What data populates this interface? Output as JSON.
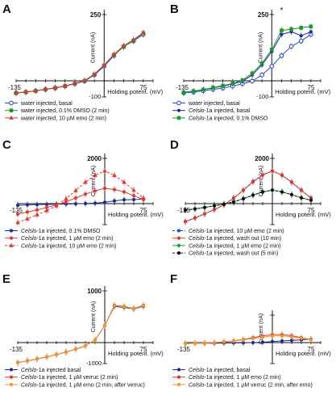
{
  "figure": {
    "panels": [
      {
        "letter": "A",
        "ymax_label": "250",
        "ymin_label": "-100",
        "xmin_label": "-135",
        "xmax_label": "75",
        "ylabel": "Current (nA)",
        "xlabel": "Holding potent. (mV)",
        "legend": [
          {
            "prefix": "",
            "italic": "",
            "text": "water injected, basal",
            "color": "#2a4bd8",
            "marker": "open-circle",
            "dash": "none"
          },
          {
            "prefix": "",
            "italic": "",
            "text": "water injected, 0.1% DMSO (2 min)",
            "color": "#1a9a2a",
            "marker": "square",
            "dash": "none"
          },
          {
            "prefix": "",
            "italic": "",
            "text": "water injected, 10 µM emo (2 min)",
            "color": "#e0382a",
            "marker": "triangle",
            "dash": "none"
          }
        ]
      },
      {
        "letter": "B",
        "ymax_label": "250",
        "ymin_label": "-100",
        "xmin_label": "-135",
        "xmax_label": "75",
        "ylabel": "Current (nA)",
        "xlabel": "Holding potent. (mV)",
        "annotation": "*",
        "legend": [
          {
            "prefix": "",
            "italic": "",
            "text": "water injected, basal",
            "color": "#2a4bd8",
            "marker": "open-circle",
            "dash": "none"
          },
          {
            "prefix": "",
            "italic": "Celslo",
            "text": "-1a injected, basal",
            "color": "#1a2a9a",
            "marker": "circle",
            "dash": "none"
          },
          {
            "prefix": "",
            "italic": "Celslo",
            "text": "-1a injected, 0.1% DMSO",
            "color": "#1a9a2a",
            "marker": "square",
            "dash": "none"
          }
        ]
      },
      {
        "letter": "C",
        "ymax_label": "2000",
        "ymin_label": "",
        "xmin_label": "-135",
        "xmax_label": "75",
        "ylabel": "Current (nA)",
        "xlabel": "Holding potent. (mV)",
        "legend": [
          {
            "prefix": "",
            "italic": "Celslo",
            "text": "-1a injected, 0.1% DMSO",
            "color": "#1a2a9a",
            "marker": "circle",
            "dash": "none"
          },
          {
            "prefix": "",
            "italic": "Celslo",
            "text": "-1a injected, 1 µM emo (2 min)",
            "color": "#e0382a",
            "marker": "circle",
            "dash": "none"
          },
          {
            "prefix": "",
            "italic": "Celslo",
            "text": "-1a injected, 10 µM emo (2 min)",
            "color": "#e0382a",
            "marker": "triangle",
            "dash": "dash"
          }
        ]
      },
      {
        "letter": "D",
        "ymax_label": "2000",
        "ymin_label": "",
        "xmin_label": "-135",
        "xmax_label": "75",
        "ylabel": "Current (nA)",
        "xlabel": "Holding potent. (mV)",
        "legend": [
          {
            "prefix": "",
            "italic": "Celslo",
            "text": "-1a injected, 10 µM emo (2 min)",
            "color": "#2a4bd8",
            "marker": "circle",
            "dash": "dash"
          },
          {
            "prefix": "",
            "italic": "Celslo",
            "text": "-1a injected, wash out (10 min)",
            "color": "#e0382a",
            "marker": "circle",
            "dash": "none"
          },
          {
            "prefix": "",
            "italic": "Celslo",
            "text": "-1a injected, 1 µM emo (2 min)",
            "color": "#1a9a2a",
            "marker": "circle",
            "dash": "none"
          },
          {
            "prefix": "",
            "italic": "Celslo",
            "text": "-1a injected, wash out (5 min)",
            "color": "#111111",
            "marker": "circle",
            "dash": "dash"
          }
        ]
      },
      {
        "letter": "E",
        "ymax_label": "1000",
        "ymin_label": "-1000",
        "xmin_label": "-135",
        "xmax_label": "75",
        "ylabel": "Current (nA)",
        "xlabel": "Holding potent. (mV)",
        "legend": [
          {
            "prefix": "",
            "italic": "Celslo",
            "text": "-1a injected basal",
            "color": "#1a2a9a",
            "marker": "circle",
            "dash": "none"
          },
          {
            "prefix": "",
            "italic": "Celslo",
            "text": "-1a injected, 1 µM verruc (2 min)",
            "color": "#e0382a",
            "marker": "circle",
            "dash": "none"
          },
          {
            "prefix": "",
            "italic": "Celslo",
            "text": "-1a injected, 1 µM emo (2 min, after verruc)",
            "color": "#f0962a",
            "marker": "circle",
            "dash": "none"
          }
        ]
      },
      {
        "letter": "F",
        "ymax_label": "",
        "ymin_label": "",
        "xmin_label": "-135",
        "xmax_label": "75",
        "ylabel": "Current (nA)",
        "xlabel": "Holding potent. (mV)",
        "legend": [
          {
            "prefix": "",
            "italic": "Celslo",
            "text": "-1a injected, basal",
            "color": "#1a2a9a",
            "marker": "circle",
            "dash": "none"
          },
          {
            "prefix": "",
            "italic": "Celslo",
            "text": "-1a injected, 1 µM emo (2 min)",
            "color": "#e0382a",
            "marker": "circle",
            "dash": "none"
          },
          {
            "prefix": "",
            "italic": "Celslo",
            "text": "-1a injected, 1 µM verruc (2 min, after emo)",
            "color": "#f0962a",
            "marker": "circle",
            "dash": "none"
          }
        ]
      }
    ]
  },
  "chart_data": [
    {
      "panel": "A",
      "type": "line",
      "xlabel": "Holding potent. (mV)",
      "ylabel": "Current (nA)",
      "xlim": [
        -135,
        75
      ],
      "ylim": [
        -100,
        250
      ],
      "x": [
        -135,
        -120,
        -105,
        -90,
        -75,
        -60,
        -45,
        -30,
        -15,
        0,
        15,
        30,
        45,
        60
      ],
      "series": [
        {
          "name": "water injected, basal",
          "color": "#2a4bd8",
          "marker": "open-circle",
          "values": [
            -75,
            -70,
            -62,
            -53,
            -45,
            -33,
            -18,
            -2,
            22,
            55,
            95,
            130,
            150,
            175
          ]
        },
        {
          "name": "water injected, 0.1% DMSO (2 min)",
          "color": "#1a9a2a",
          "marker": "square",
          "values": [
            -76,
            -70,
            -62,
            -54,
            -44,
            -32,
            -17,
            0,
            24,
            58,
            98,
            128,
            152,
            180
          ]
        },
        {
          "name": "water injected, 10 µM emo (2 min)",
          "color": "#e0382a",
          "marker": "triangle",
          "values": [
            -74,
            -69,
            -61,
            -52,
            -43,
            -31,
            -16,
            1,
            25,
            60,
            100,
            132,
            155,
            182
          ]
        }
      ]
    },
    {
      "panel": "B",
      "type": "line",
      "xlabel": "Holding potent. (mV)",
      "ylabel": "Current (nA)",
      "xlim": [
        -135,
        75
      ],
      "ylim": [
        -100,
        250
      ],
      "x": [
        -135,
        -120,
        -105,
        -90,
        -75,
        -60,
        -45,
        -30,
        -15,
        0,
        15,
        30,
        45,
        60
      ],
      "series": [
        {
          "name": "water injected, basal",
          "color": "#2a4bd8",
          "marker": "open-circle",
          "values": [
            -75,
            -70,
            -62,
            -53,
            -45,
            -33,
            -18,
            -2,
            22,
            55,
            95,
            130,
            150,
            175
          ]
        },
        {
          "name": "Celslo-1a injected, basal",
          "color": "#1a2a9a",
          "marker": "circle",
          "values": [
            -72,
            -65,
            -55,
            -44,
            -33,
            -20,
            -3,
            22,
            60,
            110,
            175,
            185,
            170,
            185
          ]
        },
        {
          "name": "Celslo-1a injected, 0.1% DMSO",
          "color": "#1a9a2a",
          "marker": "square",
          "values": [
            -72,
            -64,
            -54,
            -42,
            -30,
            -16,
            2,
            28,
            66,
            118,
            190,
            195,
            200,
            205
          ]
        }
      ]
    },
    {
      "panel": "C",
      "type": "line",
      "xlabel": "Holding potent. (mV)",
      "ylabel": "Current (nA)",
      "xlim": [
        -135,
        75
      ],
      "ylim": [
        -1000,
        2000
      ],
      "x": [
        -135,
        -120,
        -105,
        -90,
        -75,
        -60,
        -45,
        -30,
        -15,
        0,
        15,
        30,
        45,
        60
      ],
      "series": [
        {
          "name": "Celslo-1a injected, 0.1% DMSO",
          "color": "#1a2a9a",
          "marker": "circle",
          "values": [
            -80,
            -60,
            -50,
            -40,
            -30,
            -20,
            -10,
            5,
            20,
            60,
            120,
            170,
            180,
            200
          ]
        },
        {
          "name": "Celslo-1a injected, 1 µM emo (2 min)",
          "color": "#e0382a",
          "marker": "circle",
          "values": [
            -500,
            -400,
            -300,
            -180,
            -60,
            80,
            250,
            420,
            560,
            680,
            620,
            520,
            350,
            180
          ]
        },
        {
          "name": "Celslo-1a injected, 10 µM emo (2 min)",
          "color": "#e0382a",
          "marker": "triangle",
          "values": [
            -900,
            -720,
            -530,
            -330,
            -100,
            220,
            580,
            950,
            1250,
            1450,
            1250,
            950,
            600,
            250
          ]
        }
      ]
    },
    {
      "panel": "D",
      "type": "line",
      "xlabel": "Holding potent. (mV)",
      "ylabel": "Current (nA)",
      "xlim": [
        -135,
        75
      ],
      "ylim": [
        -1000,
        2000
      ],
      "x": [
        -135,
        -120,
        -105,
        -90,
        -75,
        -60,
        -45,
        -30,
        -15,
        0,
        15,
        30,
        45,
        60
      ],
      "series": [
        {
          "name": "Celslo-1a injected, 10 µM emo (2 min)",
          "color": "#2a4bd8",
          "marker": "circle",
          "values": [
            -850,
            -680,
            -480,
            -280,
            -50,
            250,
            600,
            980,
            1270,
            1450,
            1250,
            950,
            600,
            250
          ]
        },
        {
          "name": "Celslo-1a injected, wash out (10 min)",
          "color": "#e0382a",
          "marker": "circle",
          "values": [
            -860,
            -690,
            -490,
            -290,
            -60,
            240,
            590,
            960,
            1260,
            1440,
            1260,
            940,
            590,
            240
          ]
        },
        {
          "name": "Celslo-1a injected, 1 µM emo (2 min)",
          "color": "#1a9a2a",
          "marker": "circle",
          "values": [
            -300,
            -250,
            -180,
            -100,
            -20,
            80,
            220,
            380,
            520,
            600,
            520,
            400,
            260,
            150
          ]
        },
        {
          "name": "Celslo-1a injected, wash out (5 min)",
          "color": "#111111",
          "marker": "circle",
          "values": [
            -310,
            -255,
            -185,
            -105,
            -25,
            75,
            215,
            375,
            515,
            595,
            515,
            395,
            255,
            145
          ]
        }
      ]
    },
    {
      "panel": "E",
      "type": "line",
      "xlabel": "Holding potent. (mV)",
      "ylabel": "Current (nA)",
      "xlim": [
        -135,
        75
      ],
      "ylim": [
        -1000,
        1000
      ],
      "x": [
        -135,
        -120,
        -105,
        -90,
        -75,
        -60,
        -45,
        -30,
        -15,
        0,
        15,
        30,
        45,
        60
      ],
      "series": [
        {
          "name": "Celslo-1a injected basal",
          "color": "#1a2a9a",
          "marker": "circle",
          "values": [
            -950,
            -870,
            -780,
            -680,
            -570,
            -450,
            -310,
            -150,
            50,
            330,
            700,
            680,
            650,
            700
          ]
        },
        {
          "name": "Celslo-1a injected, 1 µM verruc (2 min)",
          "color": "#e0382a",
          "marker": "circle",
          "values": [
            -950,
            -870,
            -780,
            -680,
            -570,
            -450,
            -310,
            -150,
            50,
            330,
            720,
            700,
            660,
            720
          ]
        },
        {
          "name": "Celslo-1a injected, 1 µM emo (2 min, after verruc)",
          "color": "#f0962a",
          "marker": "circle",
          "values": [
            -950,
            -870,
            -780,
            -680,
            -570,
            -450,
            -310,
            -150,
            50,
            330,
            710,
            690,
            655,
            710
          ]
        }
      ]
    },
    {
      "panel": "F",
      "type": "line",
      "xlabel": "Holding potent. (mV)",
      "ylabel": "Current (nA)",
      "xlim": [
        -135,
        75
      ],
      "ylim": [
        -1000,
        1000
      ],
      "x": [
        -135,
        -120,
        -105,
        -90,
        -75,
        -60,
        -45,
        -30,
        -15,
        0,
        15,
        30,
        45,
        60
      ],
      "series": [
        {
          "name": "Celslo-1a injected, basal",
          "color": "#1a2a9a",
          "marker": "circle",
          "values": [
            -40,
            -35,
            -30,
            -25,
            -20,
            -15,
            -10,
            0,
            15,
            35,
            60,
            80,
            100,
            120
          ]
        },
        {
          "name": "Celslo-1a injected, 1 µM emo (2 min)",
          "color": "#e0382a",
          "marker": "circle",
          "values": [
            -45,
            -35,
            -20,
            0,
            25,
            65,
            115,
            180,
            240,
            290,
            290,
            250,
            180,
            110
          ]
        },
        {
          "name": "Celslo-1a injected, 1 µM verruc (2 min, after emo)",
          "color": "#f0962a",
          "marker": "circle",
          "values": [
            -40,
            -30,
            -15,
            5,
            30,
            60,
            100,
            150,
            200,
            240,
            240,
            210,
            160,
            100
          ]
        }
      ]
    }
  ]
}
